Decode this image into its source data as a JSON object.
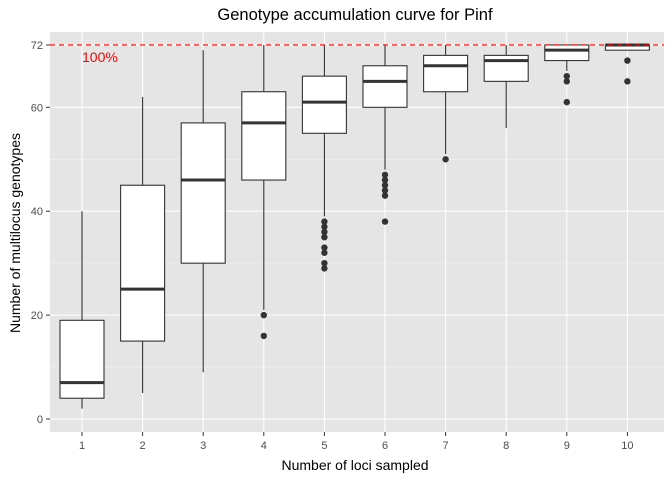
{
  "chart_data": {
    "type": "box",
    "title": "Genotype accumulation curve for Pinf",
    "xlabel": "Number of loci sampled",
    "ylabel": "Number of multilocus genotypes",
    "categories": [
      "1",
      "2",
      "3",
      "4",
      "5",
      "6",
      "7",
      "8",
      "9",
      "10"
    ],
    "ylim": [
      -2.5,
      74.5
    ],
    "yticks": [
      0,
      20,
      40,
      60,
      72
    ],
    "ytick_labels": [
      "0",
      "20",
      "40",
      "60",
      "72"
    ],
    "grid": true,
    "boxes": [
      {
        "label": "1",
        "min": 2,
        "q1": 4,
        "median": 7,
        "q3": 19,
        "max": 40,
        "outliers": []
      },
      {
        "label": "2",
        "min": 5,
        "q1": 15,
        "median": 25,
        "q3": 45,
        "max": 62,
        "outliers": []
      },
      {
        "label": "3",
        "min": 9,
        "q1": 30,
        "median": 46,
        "q3": 57,
        "max": 71,
        "outliers": []
      },
      {
        "label": "4",
        "min": 21,
        "q1": 46,
        "median": 57,
        "q3": 63,
        "max": 72,
        "outliers": [
          20,
          16
        ]
      },
      {
        "label": "5",
        "min": 39,
        "q1": 55,
        "median": 61,
        "q3": 66,
        "max": 72,
        "outliers": [
          38,
          37,
          36,
          35,
          33,
          32,
          30,
          29
        ]
      },
      {
        "label": "6",
        "min": 48,
        "q1": 60,
        "median": 65,
        "q3": 68,
        "max": 72,
        "outliers": [
          47,
          46,
          45,
          44,
          43,
          38
        ]
      },
      {
        "label": "7",
        "min": 51,
        "q1": 63,
        "median": 68,
        "q3": 70,
        "max": 72,
        "outliers": [
          50
        ]
      },
      {
        "label": "8",
        "min": 56,
        "q1": 65,
        "median": 69,
        "q3": 70,
        "max": 72,
        "outliers": []
      },
      {
        "label": "9",
        "min": 67,
        "q1": 69,
        "median": 71,
        "q3": 72,
        "max": 72,
        "outliers": [
          66,
          65,
          61
        ]
      },
      {
        "label": "10",
        "min": 71,
        "q1": 71,
        "median": 72,
        "q3": 72,
        "max": 72,
        "outliers": [
          69,
          65
        ]
      }
    ],
    "reference_line": {
      "y": 72,
      "label": "100%",
      "color": "#ff0000",
      "style": "dashed"
    },
    "colors": {
      "panel_background": "#e5e5e5",
      "grid_major": "#ffffff",
      "grid_minor": "#f0f0f0",
      "box_fill": "#ffffff",
      "box_stroke": "#333333",
      "outlier": "#333333",
      "tick_text": "#4d4d4d"
    }
  }
}
